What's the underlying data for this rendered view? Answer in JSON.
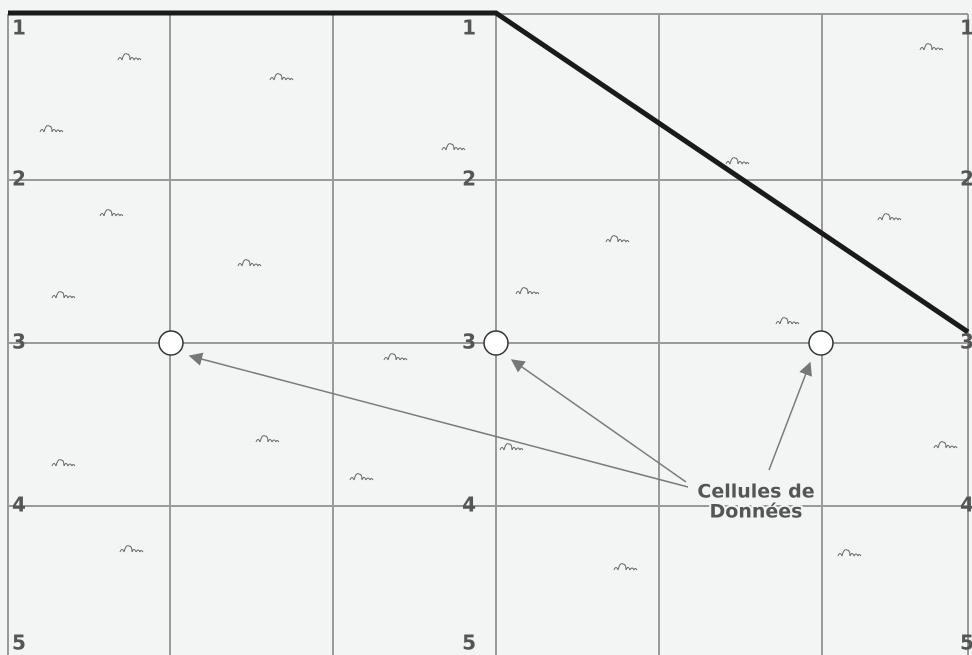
{
  "row_labels": [
    "1",
    "2",
    "3",
    "4",
    "5"
  ],
  "annotation": [
    "Cellules de",
    "Données"
  ]
}
